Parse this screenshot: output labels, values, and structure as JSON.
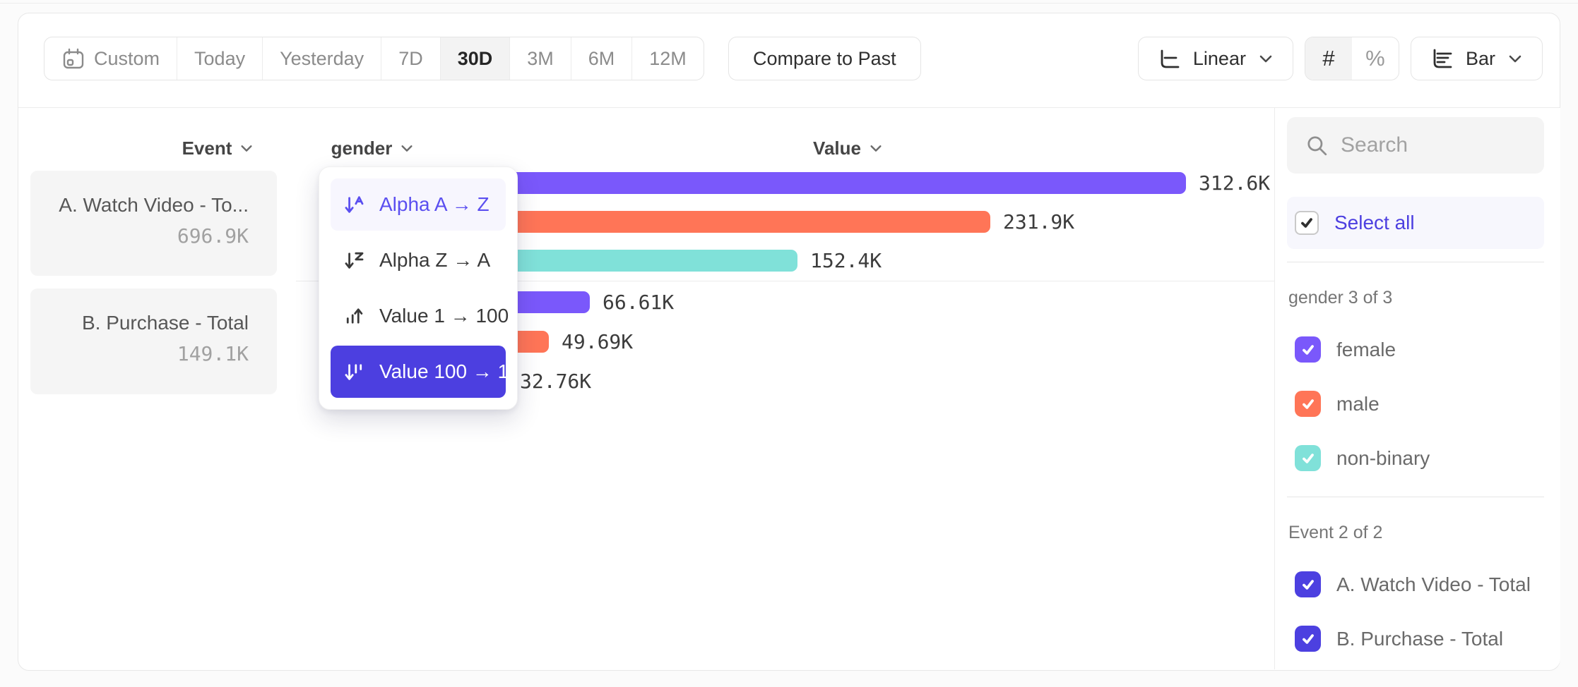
{
  "toolbar": {
    "date_ranges": [
      {
        "label": "Custom",
        "has_icon": true,
        "selected": false
      },
      {
        "label": "Today",
        "selected": false
      },
      {
        "label": "Yesterday",
        "selected": false
      },
      {
        "label": "7D",
        "selected": false
      },
      {
        "label": "30D",
        "selected": true
      },
      {
        "label": "3M",
        "selected": false
      },
      {
        "label": "6M",
        "selected": false
      },
      {
        "label": "12M",
        "selected": false
      }
    ],
    "compare_button": "Compare to Past",
    "scale_selector": {
      "label": "Linear"
    },
    "value_format": {
      "number_label": "#",
      "percent_label": "%",
      "active": "number"
    },
    "chart_type_selector": {
      "label": "Bar"
    }
  },
  "chart_header": {
    "event": "Event",
    "breakdown": "gender",
    "value": "Value"
  },
  "event_summary": [
    {
      "name": "A. Watch Video - To...",
      "value": "696.9K"
    },
    {
      "name": "B. Purchase - Total",
      "value": "149.1K"
    }
  ],
  "sort_menu": {
    "items": [
      {
        "label": "Alpha A → Z",
        "state": "hover"
      },
      {
        "label": "Alpha Z → A",
        "state": "normal"
      },
      {
        "label": "Value 1 → 100",
        "state": "normal"
      },
      {
        "label": "Value 100 → 1",
        "state": "selected"
      }
    ]
  },
  "chart_data": {
    "type": "bar",
    "orientation": "horizontal",
    "unit": "K",
    "sort": "Value 100 → 1",
    "value_labels_shown": true,
    "xlim": [
      0,
      330
    ],
    "categories": [
      "female",
      "male",
      "non-binary"
    ],
    "groups": [
      {
        "event": "A. Watch Video - Total",
        "bars": [
          {
            "label": "female",
            "value": 312.6,
            "display": "312.6K",
            "color": "#7A58FB"
          },
          {
            "label": "male",
            "value": 231.9,
            "display": "231.9K",
            "color": "#FF7557"
          },
          {
            "label": "non-binary",
            "value": 152.4,
            "display": "152.4K",
            "color": "#80E1D9"
          }
        ]
      },
      {
        "event": "B. Purchase - Total",
        "bars": [
          {
            "label": "female",
            "value": 66.61,
            "display": "66.61K",
            "color": "#7A58FB"
          },
          {
            "label": "male",
            "value": 49.69,
            "display": "49.69K",
            "color": "#FF7557"
          },
          {
            "label": "non-binary",
            "value": 32.76,
            "display": "32.76K",
            "color": "#80E1D9"
          }
        ]
      }
    ]
  },
  "sidebar": {
    "search_placeholder": "Search",
    "select_all_label": "Select all",
    "sections": [
      {
        "title": "gender 3 of 3",
        "items": [
          {
            "label": "female",
            "checked": true,
            "color": "#7A58FB"
          },
          {
            "label": "male",
            "checked": true,
            "color": "#FF7557"
          },
          {
            "label": "non-binary",
            "checked": true,
            "color": "#80E1D9"
          }
        ]
      },
      {
        "title": "Event 2 of 2",
        "items": [
          {
            "label": "A. Watch Video - Total",
            "checked": true,
            "color": "#4C40E0"
          },
          {
            "label": "B. Purchase - Total",
            "checked": true,
            "color": "#4C40E0"
          }
        ]
      }
    ]
  },
  "colors": {
    "accent_indigo": "#4C3FE0",
    "series_purple": "#7A58FB",
    "series_orange": "#FF7557",
    "series_teal": "#80E1D9"
  }
}
